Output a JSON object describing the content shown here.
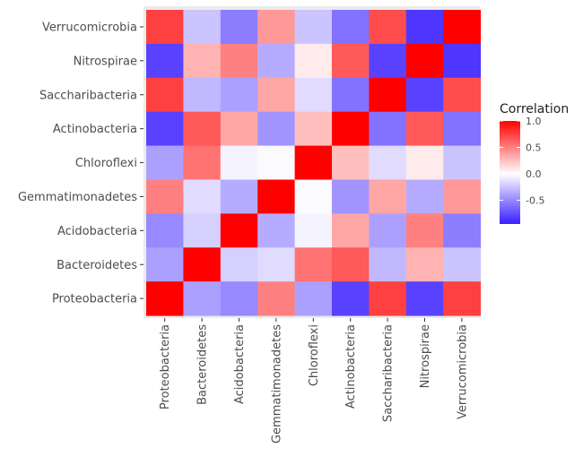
{
  "chart_data": {
    "type": "heatmap",
    "title": "",
    "xlabel": "",
    "ylabel": "",
    "x_categories": [
      "Proteobacteria",
      "Bacteroidetes",
      "Acidobacteria",
      "Gemmatimonadetes",
      "Chloroflexi",
      "Actinobacteria",
      "Saccharibacteria",
      "Nitrospirae",
      "Verrucomicrobia"
    ],
    "y_categories_top_to_bottom": [
      "Verrucomicrobia",
      "Nitrospirae",
      "Saccharibacteria",
      "Actinobacteria",
      "Chloroflexi",
      "Gemmatimonadetes",
      "Acidobacteria",
      "Bacteroidetes",
      "Proteobacteria"
    ],
    "values": {
      "Verrucomicrobia": [
        0.75,
        -0.25,
        -0.55,
        0.4,
        -0.25,
        -0.6,
        0.7,
        -0.85,
        1.0
      ],
      "Nitrospirae": [
        -0.8,
        0.3,
        0.5,
        -0.35,
        0.08,
        0.65,
        -0.8,
        1.0,
        -0.85
      ],
      "Saccharibacteria": [
        0.75,
        -0.3,
        -0.4,
        0.35,
        -0.15,
        -0.6,
        1.0,
        -0.8,
        0.7
      ],
      "Actinobacteria": [
        -0.8,
        0.65,
        0.35,
        -0.45,
        0.25,
        1.0,
        -0.6,
        0.65,
        -0.6
      ],
      "Chloroflexi": [
        -0.4,
        0.55,
        -0.05,
        -0.02,
        1.0,
        0.25,
        -0.15,
        0.08,
        -0.25
      ],
      "Gemmatimonadetes": [
        0.5,
        -0.15,
        -0.35,
        1.0,
        -0.02,
        -0.45,
        0.35,
        -0.35,
        0.4
      ],
      "Acidobacteria": [
        -0.5,
        -0.2,
        1.0,
        -0.35,
        -0.05,
        0.35,
        -0.4,
        0.5,
        -0.55
      ],
      "Bacteroidetes": [
        -0.4,
        1.0,
        -0.2,
        -0.15,
        0.55,
        0.65,
        -0.3,
        0.3,
        -0.25
      ],
      "Proteobacteria": [
        1.0,
        -0.4,
        -0.5,
        0.5,
        -0.4,
        -0.8,
        0.75,
        -0.8,
        0.75
      ]
    },
    "legend": {
      "title": "Correlation",
      "ticks": [
        1.0,
        0.5,
        0.0,
        -0.5
      ],
      "tick_labels": [
        "1.0",
        "0.5",
        "0.0",
        "-0.5"
      ],
      "limits": [
        -0.95,
        1.0
      ],
      "placement": "right"
    },
    "colors": {
      "low": "#3A1EFF",
      "mid": "#FFFFFF",
      "high": "#FF0000",
      "panel": "#EBEBEB"
    }
  }
}
